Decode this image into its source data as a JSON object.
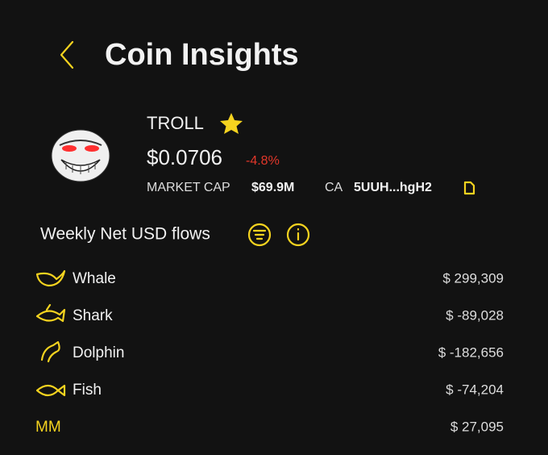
{
  "header": {
    "title": "Coin Insights"
  },
  "coin": {
    "name": "TROLL",
    "price": "$0.0706",
    "change": "-4.8%",
    "market_cap_label": "MARKET CAP",
    "market_cap": "$69.9M",
    "ca_label": "CA",
    "ca": "5UUH...hgH2"
  },
  "section": {
    "title": "Weekly Net USD flows"
  },
  "chart_data": {
    "type": "bar",
    "orientation": "horizontal",
    "categories": [
      "Whale",
      "Shark",
      "Dolphin",
      "Fish",
      "MM"
    ],
    "values": [
      299309,
      -89028,
      -182656,
      -74204,
      27095
    ],
    "value_labels": [
      "$ 299,309",
      "$ -89,028",
      "$ -182,656",
      "$ -74,204",
      "$ 27,095"
    ],
    "positive_color": "#1ee36b",
    "negative_color": "#e2372a"
  }
}
